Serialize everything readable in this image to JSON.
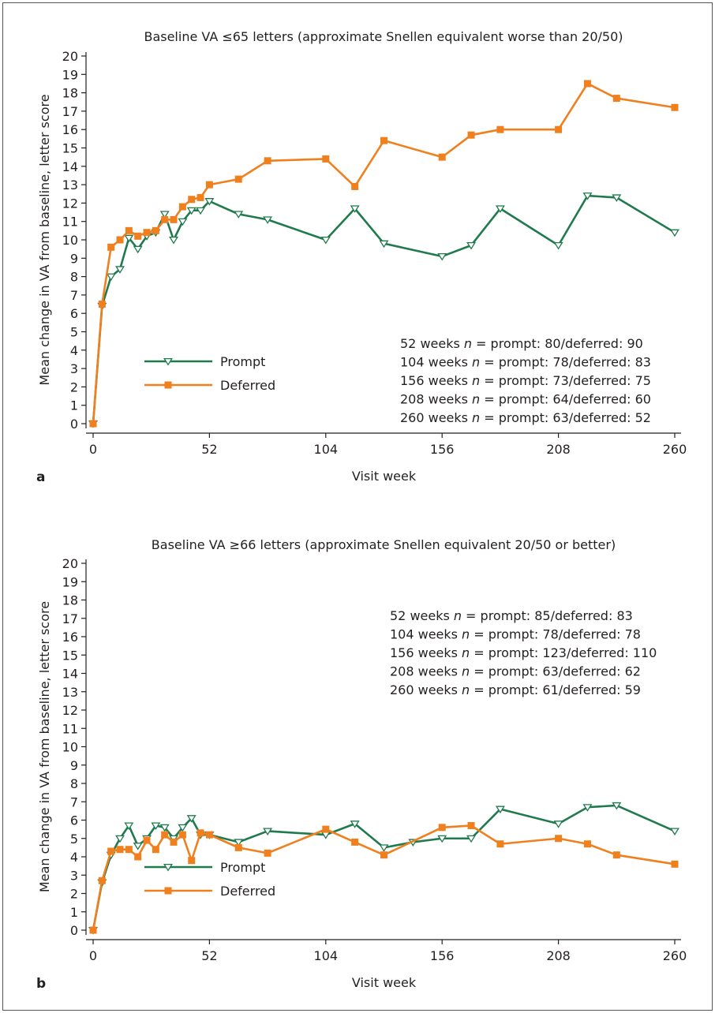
{
  "colors": {
    "prompt": "#1f7a4d",
    "deferred": "#f07f1e",
    "axis": "#231f20"
  },
  "chart_data": [
    {
      "type": "line",
      "panel_label": "a",
      "title": "Baseline VA ≤65 letters (approximate Snellen equivalent worse than 20/50)",
      "xlabel": "Visit week",
      "ylabel": "Mean change in VA from baseline, letter score",
      "xlim": [
        0,
        260
      ],
      "ylim": [
        0,
        20
      ],
      "x_ticks": [
        0,
        52,
        104,
        156,
        208,
        260
      ],
      "y_ticks": [
        0,
        1,
        2,
        3,
        4,
        5,
        6,
        7,
        8,
        9,
        10,
        11,
        12,
        13,
        14,
        15,
        16,
        17,
        18,
        19,
        20
      ],
      "legend_position": "lower-left",
      "series": [
        {
          "name": "Prompt",
          "marker": "triangle-down-open",
          "color": "#1f7a4d",
          "points": [
            [
              0,
              0
            ],
            [
              4,
              6.4
            ],
            [
              8,
              8.0
            ],
            [
              12,
              8.4
            ],
            [
              16,
              10.1
            ],
            [
              20,
              9.5
            ],
            [
              24,
              10.2
            ],
            [
              28,
              10.4
            ],
            [
              32,
              11.4
            ],
            [
              36,
              10.0
            ],
            [
              40,
              11.0
            ],
            [
              44,
              11.6
            ],
            [
              48,
              11.6
            ],
            [
              52,
              12.1
            ],
            [
              65,
              11.4
            ],
            [
              78,
              11.1
            ],
            [
              104,
              10.0
            ],
            [
              117,
              11.7
            ],
            [
              130,
              9.8
            ],
            [
              156,
              9.1
            ],
            [
              169,
              9.7
            ],
            [
              182,
              11.7
            ],
            [
              208,
              9.7
            ],
            [
              221,
              12.4
            ],
            [
              234,
              12.3
            ],
            [
              260,
              10.4
            ]
          ]
        },
        {
          "name": "Deferred",
          "marker": "square",
          "color": "#f07f1e",
          "points": [
            [
              0,
              0
            ],
            [
              4,
              6.5
            ],
            [
              8,
              9.6
            ],
            [
              12,
              10.0
            ],
            [
              16,
              10.5
            ],
            [
              20,
              10.2
            ],
            [
              24,
              10.4
            ],
            [
              28,
              10.5
            ],
            [
              32,
              11.1
            ],
            [
              36,
              11.1
            ],
            [
              40,
              11.8
            ],
            [
              44,
              12.2
            ],
            [
              48,
              12.3
            ],
            [
              52,
              13.0
            ],
            [
              65,
              13.3
            ],
            [
              78,
              14.3
            ],
            [
              104,
              14.4
            ],
            [
              117,
              12.9
            ],
            [
              130,
              15.4
            ],
            [
              156,
              14.5
            ],
            [
              169,
              15.7
            ],
            [
              182,
              16.0
            ],
            [
              208,
              16.0
            ],
            [
              221,
              18.5
            ],
            [
              234,
              17.7
            ],
            [
              260,
              17.2
            ]
          ]
        }
      ],
      "annotations": [
        {
          "weeks": "52 weeks",
          "rest": " = prompt: 80/deferred: 90"
        },
        {
          "weeks": "104 weeks",
          "rest": " = prompt: 78/deferred: 83"
        },
        {
          "weeks": "156 weeks",
          "rest": " = prompt: 73/deferred: 75"
        },
        {
          "weeks": "208 weeks",
          "rest": " = prompt: 64/deferred: 60"
        },
        {
          "weeks": "260 weeks",
          "rest": " = prompt: 63/deferred: 52"
        }
      ]
    },
    {
      "type": "line",
      "panel_label": "b",
      "title": "Baseline VA ≥66 letters (approximate Snellen equivalent 20/50 or better)",
      "xlabel": "Visit week",
      "ylabel": "Mean change in VA from baseline, letter score",
      "xlim": [
        0,
        260
      ],
      "ylim": [
        0,
        20
      ],
      "x_ticks": [
        0,
        52,
        104,
        156,
        208,
        260
      ],
      "y_ticks": [
        0,
        1,
        2,
        3,
        4,
        5,
        6,
        7,
        8,
        9,
        10,
        11,
        12,
        13,
        14,
        15,
        16,
        17,
        18,
        19,
        20
      ],
      "legend_position": "lower-left",
      "series": [
        {
          "name": "Prompt",
          "marker": "triangle-down-open",
          "color": "#1f7a4d",
          "points": [
            [
              0,
              0
            ],
            [
              4,
              2.6
            ],
            [
              8,
              4.1
            ],
            [
              12,
              5.0
            ],
            [
              16,
              5.7
            ],
            [
              20,
              4.6
            ],
            [
              24,
              5.0
            ],
            [
              28,
              5.7
            ],
            [
              32,
              5.6
            ],
            [
              36,
              5.0
            ],
            [
              40,
              5.6
            ],
            [
              44,
              6.1
            ],
            [
              48,
              5.2
            ],
            [
              52,
              5.2
            ],
            [
              65,
              4.8
            ],
            [
              78,
              5.4
            ],
            [
              104,
              5.2
            ],
            [
              117,
              5.8
            ],
            [
              130,
              4.5
            ],
            [
              143,
              4.8
            ],
            [
              156,
              5.0
            ],
            [
              169,
              5.0
            ],
            [
              182,
              6.6
            ],
            [
              208,
              5.8
            ],
            [
              221,
              6.7
            ],
            [
              234,
              6.8
            ],
            [
              260,
              5.4
            ]
          ]
        },
        {
          "name": "Deferred",
          "marker": "square",
          "color": "#f07f1e",
          "points": [
            [
              0,
              0
            ],
            [
              4,
              2.7
            ],
            [
              8,
              4.3
            ],
            [
              12,
              4.4
            ],
            [
              16,
              4.4
            ],
            [
              20,
              4.0
            ],
            [
              24,
              4.9
            ],
            [
              28,
              4.4
            ],
            [
              32,
              5.2
            ],
            [
              36,
              4.8
            ],
            [
              40,
              5.2
            ],
            [
              44,
              3.8
            ],
            [
              48,
              5.3
            ],
            [
              52,
              5.2
            ],
            [
              65,
              4.5
            ],
            [
              78,
              4.2
            ],
            [
              104,
              5.5
            ],
            [
              117,
              4.8
            ],
            [
              130,
              4.1
            ],
            [
              156,
              5.6
            ],
            [
              169,
              5.7
            ],
            [
              182,
              4.7
            ],
            [
              208,
              5.0
            ],
            [
              221,
              4.7
            ],
            [
              234,
              4.1
            ],
            [
              260,
              3.6
            ]
          ]
        }
      ],
      "annotations": [
        {
          "weeks": "52 weeks",
          "rest": " = prompt: 85/deferred: 83"
        },
        {
          "weeks": "104 weeks",
          "rest": " = prompt: 78/deferred: 78"
        },
        {
          "weeks": "156 weeks",
          "rest": " = prompt: 123/deferred: 110"
        },
        {
          "weeks": "208 weeks",
          "rest": " = prompt: 63/deferred: 62"
        },
        {
          "weeks": "260 weeks",
          "rest": " = prompt: 61/deferred: 59"
        }
      ]
    }
  ]
}
